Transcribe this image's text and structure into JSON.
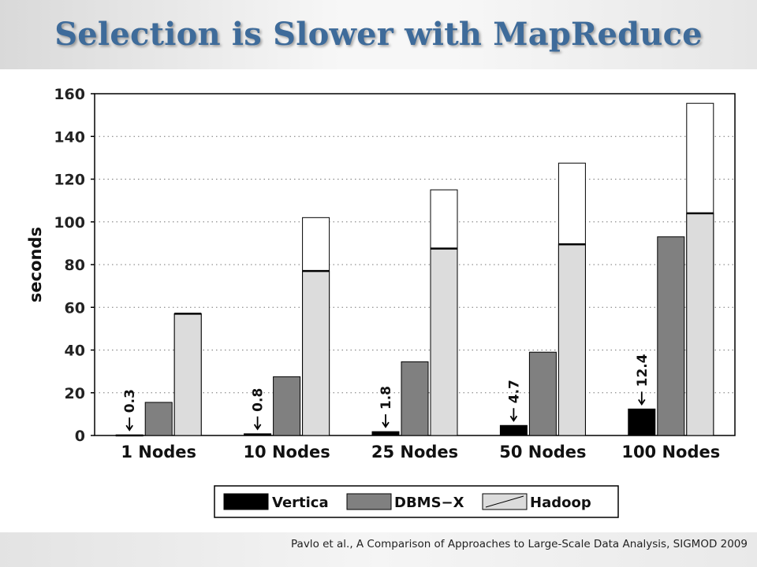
{
  "slide": {
    "title": "Selection is Slower with MapReduce",
    "citation": "Pavlo et al., A Comparison of Approaches to Large-Scale Data Analysis, SIGMOD 2009"
  },
  "chart_data": {
    "type": "bar",
    "title": "",
    "xlabel": "",
    "ylabel": "seconds",
    "ylim": [
      0,
      160
    ],
    "yticks": [
      0,
      20,
      40,
      60,
      80,
      100,
      120,
      140,
      160
    ],
    "grid": "horizontal dotted",
    "legend_position": "bottom",
    "categories": [
      "1 Nodes",
      "10 Nodes",
      "25 Nodes",
      "50 Nodes",
      "100 Nodes"
    ],
    "series": [
      {
        "name": "Vertica",
        "values": [
          0.3,
          0.8,
          1.8,
          4.7,
          12.4
        ],
        "color": "#000000"
      },
      {
        "name": "DBMS−X",
        "values": [
          15.5,
          27.5,
          34.5,
          39,
          93
        ],
        "color": "#808080"
      },
      {
        "name": "Hadoop",
        "values": [
          57,
          102,
          115,
          127.5,
          155.5
        ],
        "color": "#ffffff",
        "inner_values": [
          57,
          77,
          87.5,
          89.5,
          104
        ],
        "inner_color": "#dcdcdc"
      }
    ],
    "annotations": [
      "0.3",
      "0.8",
      "1.8",
      "4.7",
      "12.4"
    ]
  }
}
